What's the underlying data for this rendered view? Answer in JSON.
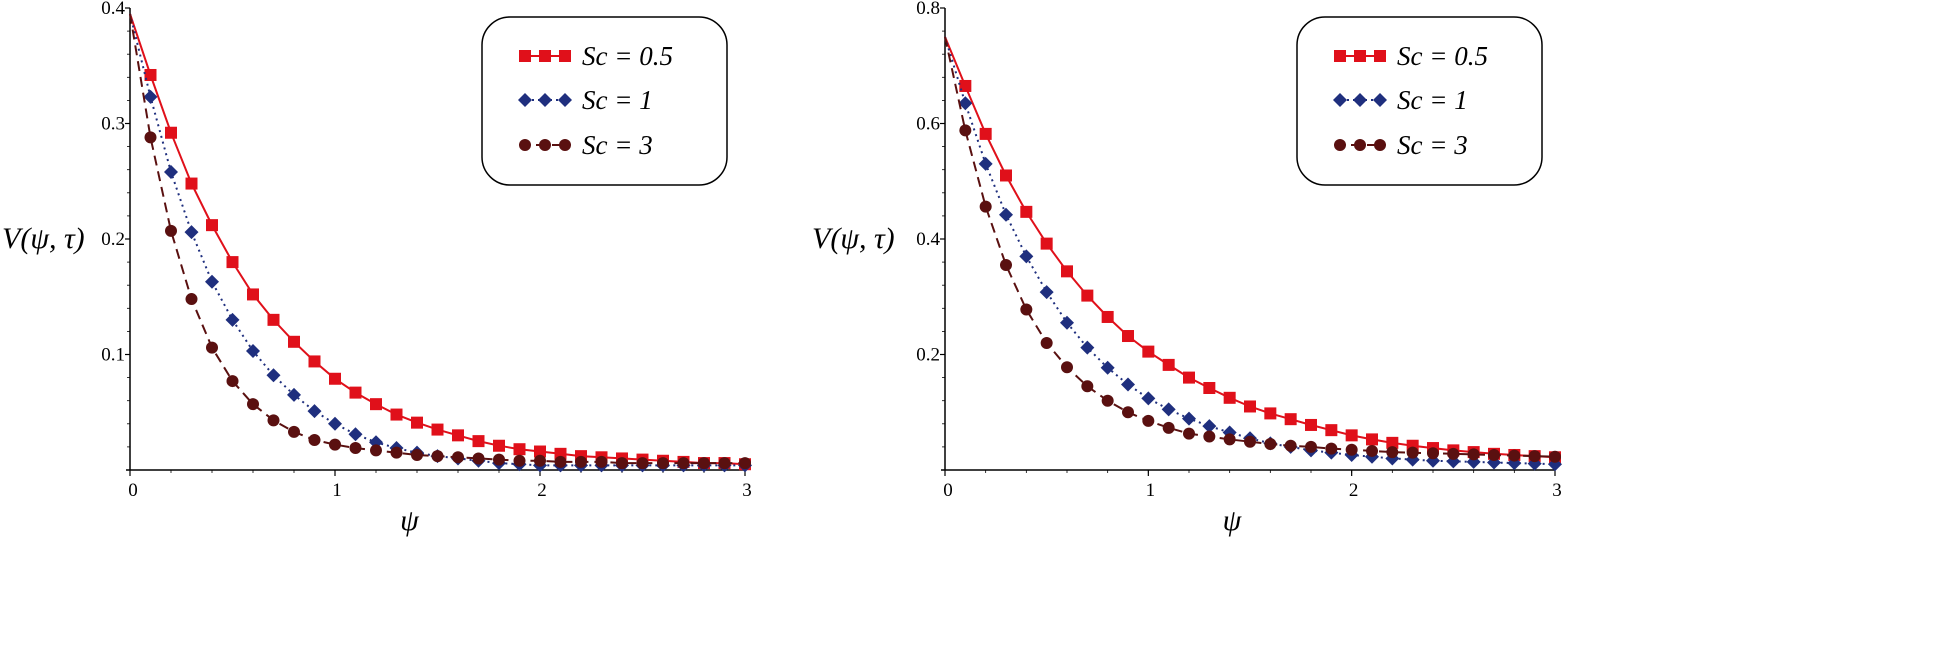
{
  "chart_data": [
    {
      "type": "line",
      "title": "",
      "xlabel": "ψ",
      "ylabel": "V(ψ, τ)",
      "xlim": [
        0,
        3
      ],
      "ylim": [
        0,
        0.4
      ],
      "xticks": [
        "0",
        "1",
        "2",
        "3"
      ],
      "yticks": [
        "0.1",
        "0.2",
        "0.3",
        "0.4"
      ],
      "grid": false,
      "legend_position": "top-right",
      "x": [
        0,
        0.1,
        0.2,
        0.3,
        0.4,
        0.5,
        0.6,
        0.7,
        0.8,
        0.9,
        1.0,
        1.1,
        1.2,
        1.3,
        1.4,
        1.5,
        1.6,
        1.7,
        1.8,
        1.9,
        2.0,
        2.1,
        2.2,
        2.3,
        2.4,
        2.5,
        2.6,
        2.7,
        2.8,
        2.9,
        3.0
      ],
      "series": [
        {
          "name": "Sc = 0.5",
          "color": "#e0101a",
          "marker": "square",
          "line": "solid",
          "values": [
            0.395,
            0.342,
            0.292,
            0.248,
            0.212,
            0.18,
            0.152,
            0.13,
            0.111,
            0.094,
            0.079,
            0.067,
            0.057,
            0.048,
            0.041,
            0.035,
            0.03,
            0.025,
            0.021,
            0.018,
            0.016,
            0.014,
            0.012,
            0.011,
            0.01,
            0.009,
            0.008,
            0.007,
            0.006,
            0.006,
            0.005
          ]
        },
        {
          "name": "Sc = 1",
          "color": "#1f2f7e",
          "marker": "diamond",
          "line": "dotted",
          "values": [
            0.395,
            0.323,
            0.258,
            0.206,
            0.163,
            0.13,
            0.103,
            0.082,
            0.065,
            0.051,
            0.04,
            0.031,
            0.024,
            0.019,
            0.015,
            0.012,
            0.01,
            0.008,
            0.006,
            0.005,
            0.004,
            0.004,
            0.004,
            0.004,
            0.004,
            0.004,
            0.004,
            0.004,
            0.004,
            0.004,
            0.004
          ]
        },
        {
          "name": "Sc = 3",
          "color": "#5a1010",
          "marker": "circle",
          "line": "dashed",
          "values": [
            0.395,
            0.288,
            0.207,
            0.148,
            0.106,
            0.077,
            0.057,
            0.043,
            0.033,
            0.026,
            0.022,
            0.019,
            0.017,
            0.015,
            0.013,
            0.012,
            0.011,
            0.01,
            0.009,
            0.008,
            0.008,
            0.007,
            0.007,
            0.007,
            0.006,
            0.006,
            0.006,
            0.006,
            0.006,
            0.006,
            0.006
          ]
        }
      ]
    },
    {
      "type": "line",
      "title": "",
      "xlabel": "ψ",
      "ylabel": "V(ψ, τ)",
      "xlim": [
        0,
        3
      ],
      "ylim": [
        0,
        0.8
      ],
      "xticks": [
        "0",
        "1",
        "2",
        "3"
      ],
      "yticks": [
        "0.2",
        "0.4",
        "0.6",
        "0.8"
      ],
      "grid": false,
      "legend_position": "top-right",
      "x": [
        0,
        0.1,
        0.2,
        0.3,
        0.4,
        0.5,
        0.6,
        0.7,
        0.8,
        0.9,
        1.0,
        1.1,
        1.2,
        1.3,
        1.4,
        1.5,
        1.6,
        1.7,
        1.8,
        1.9,
        2.0,
        2.1,
        2.2,
        2.3,
        2.4,
        2.5,
        2.6,
        2.7,
        2.8,
        2.9,
        3.0
      ],
      "series": [
        {
          "name": "Sc = 0.5",
          "color": "#e0101a",
          "marker": "square",
          "line": "solid",
          "values": [
            0.75,
            0.665,
            0.582,
            0.51,
            0.447,
            0.392,
            0.344,
            0.302,
            0.265,
            0.232,
            0.205,
            0.182,
            0.16,
            0.142,
            0.125,
            0.11,
            0.098,
            0.088,
            0.078,
            0.069,
            0.06,
            0.053,
            0.047,
            0.042,
            0.038,
            0.034,
            0.031,
            0.028,
            0.026,
            0.024,
            0.022
          ]
        },
        {
          "name": "Sc = 1",
          "color": "#1f2f7e",
          "marker": "diamond",
          "line": "dotted",
          "values": [
            0.75,
            0.635,
            0.53,
            0.442,
            0.37,
            0.308,
            0.255,
            0.212,
            0.177,
            0.148,
            0.124,
            0.105,
            0.089,
            0.076,
            0.065,
            0.055,
            0.046,
            0.04,
            0.034,
            0.03,
            0.026,
            0.023,
            0.02,
            0.018,
            0.016,
            0.015,
            0.014,
            0.013,
            0.012,
            0.011,
            0.01
          ]
        },
        {
          "name": "Sc = 3",
          "color": "#5a1010",
          "marker": "circle",
          "line": "dashed",
          "values": [
            0.75,
            0.588,
            0.456,
            0.355,
            0.278,
            0.22,
            0.178,
            0.145,
            0.12,
            0.1,
            0.085,
            0.073,
            0.063,
            0.058,
            0.053,
            0.049,
            0.045,
            0.042,
            0.04,
            0.037,
            0.035,
            0.033,
            0.031,
            0.03,
            0.029,
            0.028,
            0.027,
            0.026,
            0.025,
            0.024,
            0.023
          ]
        }
      ]
    }
  ]
}
